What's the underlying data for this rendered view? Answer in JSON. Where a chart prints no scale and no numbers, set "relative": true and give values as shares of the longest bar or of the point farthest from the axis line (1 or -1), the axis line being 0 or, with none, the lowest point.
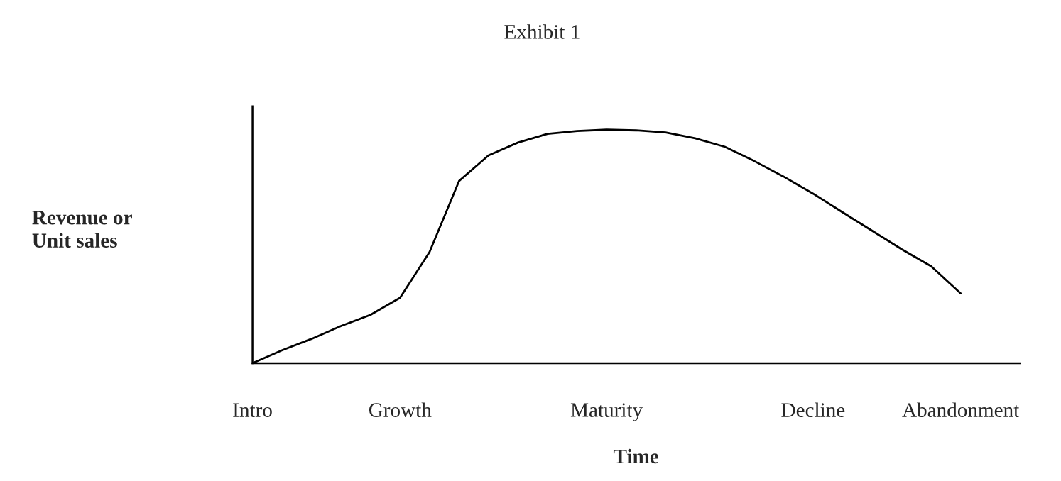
{
  "chart_data": {
    "type": "line",
    "title": "Exhibit 1",
    "xlabel": "Time",
    "ylabel": "Revenue or\nUnit sales",
    "relative": true,
    "categories": [
      "Intro",
      null,
      null,
      null,
      null,
      "Growth",
      null,
      null,
      null,
      null,
      null,
      null,
      "Maturity",
      null,
      null,
      null,
      null,
      null,
      null,
      "Decline",
      null,
      null,
      null,
      null,
      "Abandonment",
      null,
      null
    ],
    "series": [
      {
        "color": "#000000",
        "values": [
          0,
          0.055,
          0.104,
          0.159,
          0.207,
          0.28,
          0.476,
          0.78,
          0.89,
          0.945,
          0.982,
          0.994,
          1,
          0.997,
          0.988,
          0.963,
          0.927,
          0.866,
          0.799,
          0.726,
          0.646,
          0.567,
          0.488,
          0.415,
          0.299,
          null,
          null
        ]
      }
    ],
    "grid": false,
    "legend": false,
    "marker": "none",
    "line_style": "solid"
  }
}
